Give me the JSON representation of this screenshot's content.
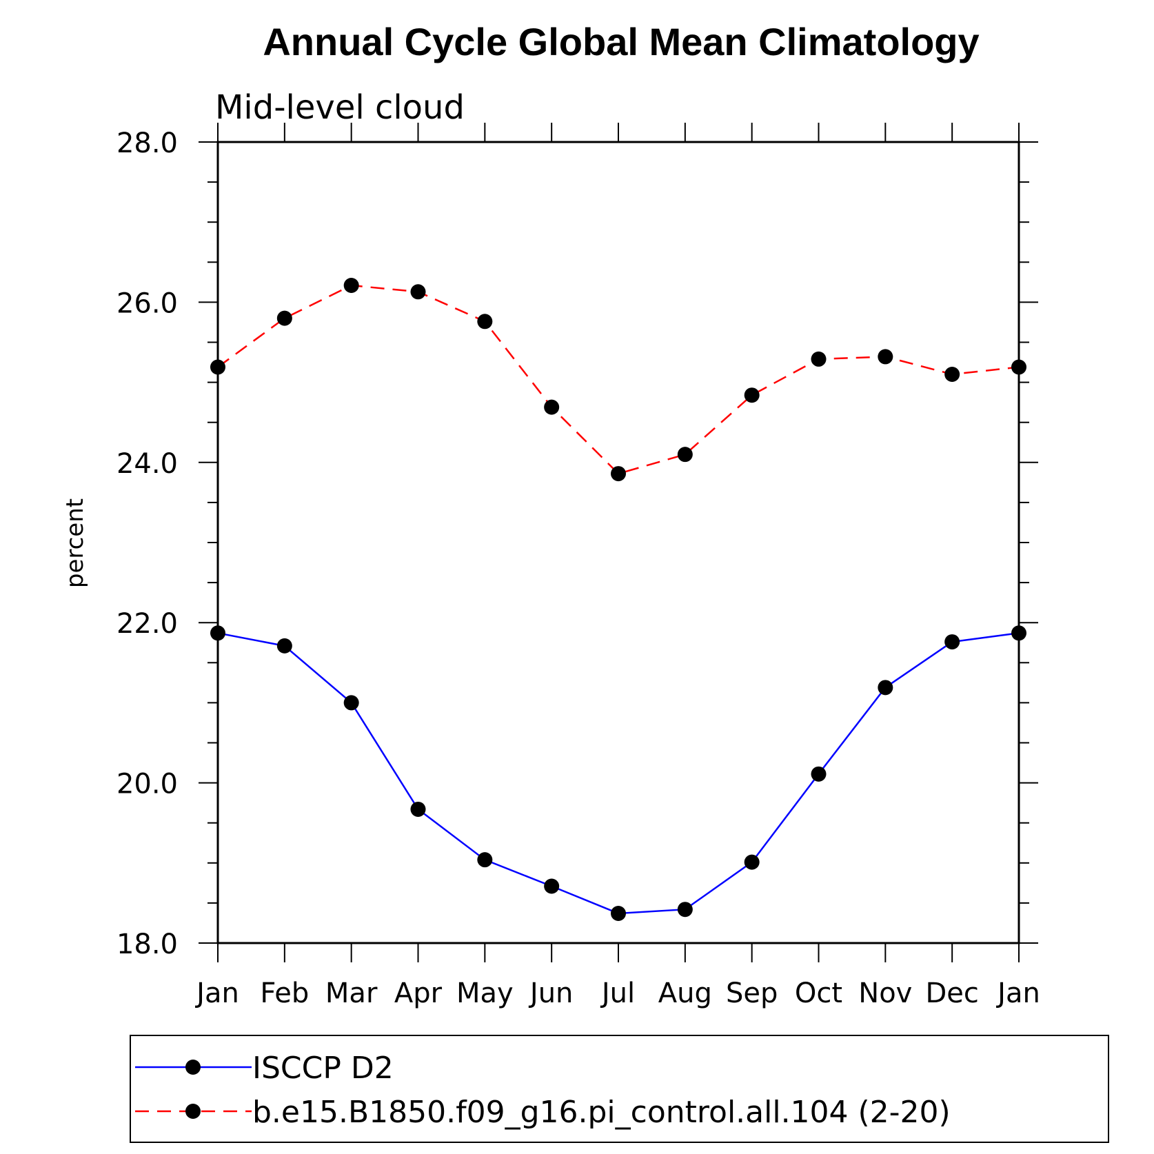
{
  "chart_data": {
    "type": "line",
    "title": "Annual Cycle Global Mean Climatology",
    "subtitle": "Mid-level cloud",
    "xlabel": "",
    "ylabel": "percent",
    "categories": [
      "Jan",
      "Feb",
      "Mar",
      "Apr",
      "May",
      "Jun",
      "Jul",
      "Aug",
      "Sep",
      "Oct",
      "Nov",
      "Dec",
      "Jan"
    ],
    "ylim": [
      18.0,
      28.0
    ],
    "yticks": [
      "18.0",
      "20.0",
      "22.0",
      "24.0",
      "26.0",
      "28.0"
    ],
    "legend_position": "bottom",
    "series": [
      {
        "name": "ISCCP D2",
        "color": "#0000ff",
        "style": "solid",
        "values": [
          21.87,
          21.71,
          21.0,
          19.67,
          19.04,
          18.71,
          18.37,
          18.42,
          19.01,
          20.11,
          21.19,
          21.76,
          21.87
        ]
      },
      {
        "name": "b.e15.B1850.f09_g16.pi_control.all.104 (2-20)",
        "color": "#ff0000",
        "style": "dashed",
        "values": [
          25.19,
          25.8,
          26.21,
          26.13,
          25.76,
          24.69,
          23.86,
          24.1,
          24.84,
          25.29,
          25.32,
          25.1,
          25.19
        ]
      }
    ]
  }
}
